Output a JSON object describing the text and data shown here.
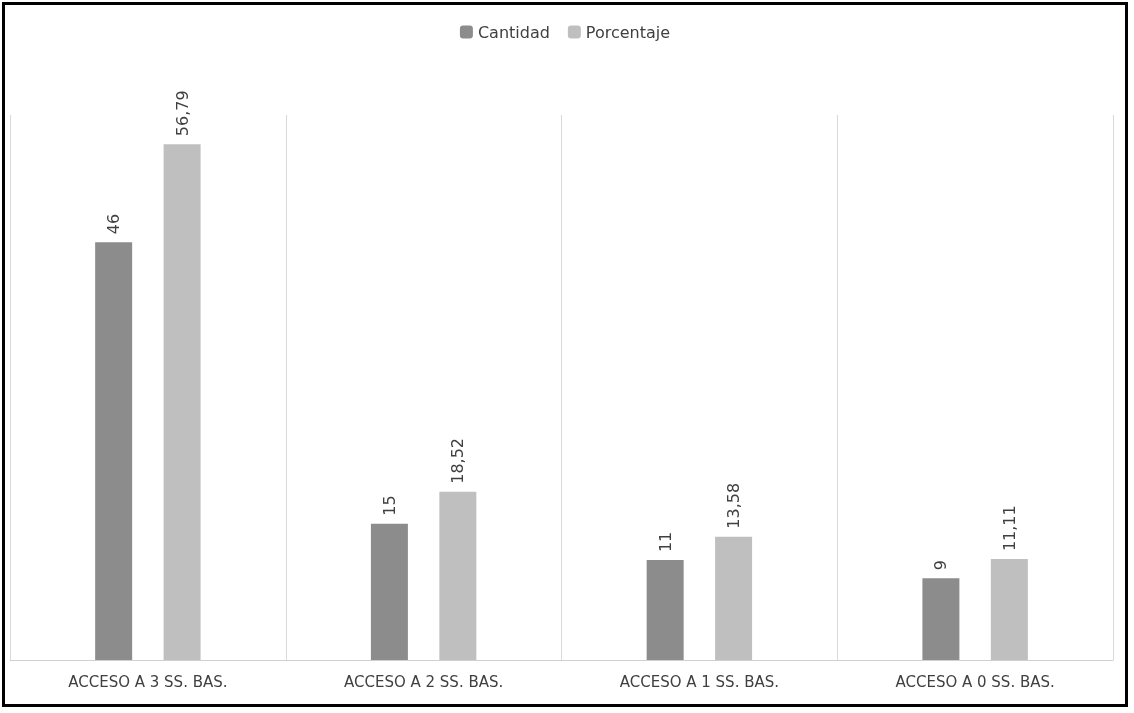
{
  "chart_data": {
    "type": "bar",
    "categories": [
      "ACCESO A 3 SS. BAS.",
      "ACCESO A 2 SS. BAS.",
      "ACCESO A 1 SS. BAS.",
      "ACCESO A 0 SS. BAS."
    ],
    "series": [
      {
        "name": "Cantidad",
        "color": "#8c8c8c",
        "values": [
          46,
          15,
          11,
          9
        ],
        "value_labels": [
          "46",
          "15",
          "11",
          "9"
        ]
      },
      {
        "name": "Porcentaje",
        "color": "#bfbfbf",
        "values": [
          56.79,
          18.52,
          13.58,
          11.11
        ],
        "value_labels": [
          "56,79",
          "18,52",
          "13,58",
          "11,11"
        ]
      }
    ],
    "tick_labels": "x",
    "grid": "x",
    "legend": "top"
  }
}
